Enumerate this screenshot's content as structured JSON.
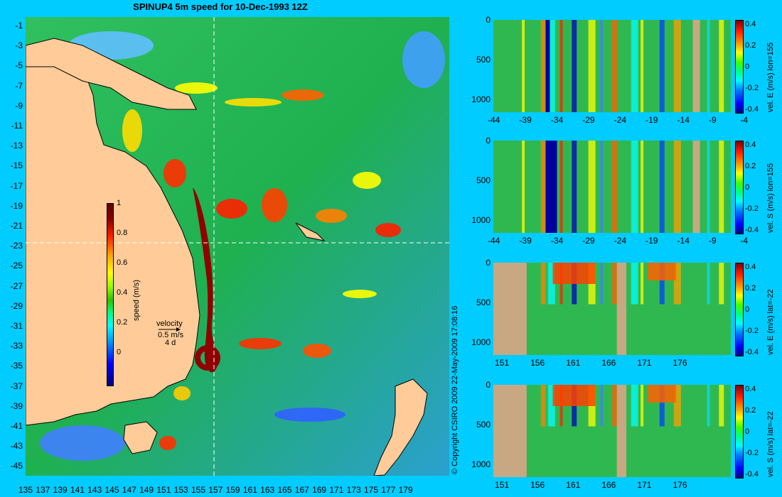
{
  "map": {
    "title": "SPINUP4 5m speed for 10-Dec-1993 12Z",
    "lat_ticks": [
      "-1",
      "-3",
      "-5",
      "-7",
      "-9",
      "-11",
      "-13",
      "-15",
      "-17",
      "-19",
      "-21",
      "-23",
      "-25",
      "-27",
      "-29",
      "-31",
      "-33",
      "-35",
      "-37",
      "-39",
      "-41",
      "-43",
      "-45"
    ],
    "lon_ticks": [
      "135",
      "137",
      "139",
      "141",
      "143",
      "145",
      "147",
      "149",
      "151",
      "153",
      "155",
      "157",
      "159",
      "161",
      "163",
      "165",
      "167",
      "169",
      "171",
      "173",
      "175",
      "177",
      "179"
    ],
    "colorbar": {
      "ticks": [
        "1",
        "0.8",
        "0.6",
        "0.4",
        "0.2",
        "0"
      ],
      "label": "speed (m/s)"
    },
    "velocity_legend": {
      "title": "velocity",
      "speed": "0.5 m/s",
      "duration": "4 d"
    },
    "section_lines": {
      "lon": 155,
      "lat": -22
    },
    "copyright": "© Copyright CSIRO 2009   22-May-2009 17:08:16"
  },
  "panels": [
    {
      "name": "panel-e-lon155",
      "y_ticks": [
        "0",
        "500",
        "1000"
      ],
      "x_ticks": [
        "-44",
        "-39",
        "-34",
        "-29",
        "-24",
        "-19",
        "-14",
        "-9",
        "-4"
      ],
      "cb_ticks": [
        "0.4",
        "0.2",
        "0",
        "-0.2",
        "-0.4"
      ],
      "cb_label": "vel. E (m/s) lon=155"
    },
    {
      "name": "panel-s-lon155",
      "y_ticks": [
        "0",
        "500",
        "1000"
      ],
      "x_ticks": [
        "-44",
        "-39",
        "-34",
        "-29",
        "-24",
        "-19",
        "-14",
        "-9",
        "-4"
      ],
      "cb_ticks": [
        "0.4",
        "0.2",
        "0",
        "-0.2",
        "-0.4"
      ],
      "cb_label": "vel. S (m/s) lon=155"
    },
    {
      "name": "panel-e-lat-22",
      "y_ticks": [
        "0",
        "500",
        "1000"
      ],
      "x_ticks": [
        "151",
        "156",
        "161",
        "166",
        "171",
        "176"
      ],
      "cb_ticks": [
        "0.4",
        "0.2",
        "0",
        "-0.2",
        "-0.4"
      ],
      "cb_label": "vel. E (m/s) lat=-22"
    },
    {
      "name": "panel-s-lat-22",
      "y_ticks": [
        "0",
        "500",
        "1000"
      ],
      "x_ticks": [
        "151",
        "156",
        "161",
        "166",
        "171",
        "176"
      ],
      "cb_ticks": [
        "0.4",
        "0.2",
        "0",
        "-0.2",
        "-0.4"
      ],
      "cb_label": "vel. S (m/s) lat=-22"
    }
  ],
  "colors": {
    "background": "#00ccff",
    "land": "#ffcc99",
    "section_land": "#c8a882",
    "ocean_base": "#22bb44"
  }
}
